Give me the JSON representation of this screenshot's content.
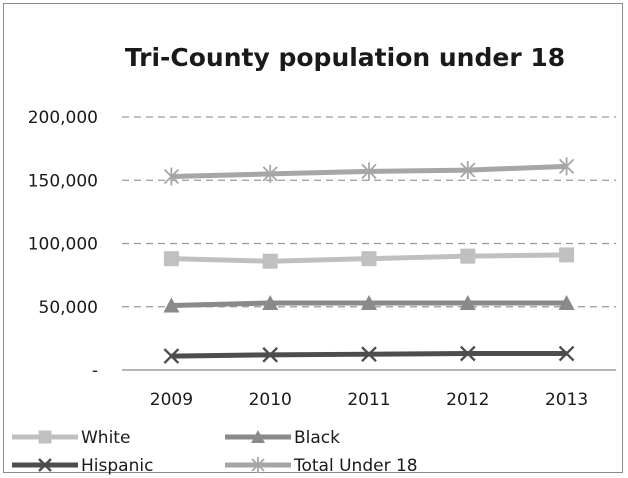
{
  "chart_data": {
    "type": "line",
    "title": "Tri-County population under 18",
    "xlabel": "",
    "ylabel": "",
    "categories": [
      "2009",
      "2010",
      "2011",
      "2012",
      "2013"
    ],
    "ylim": [
      0,
      200000
    ],
    "yticks": [
      0,
      50000,
      100000,
      150000,
      200000
    ],
    "ytick_labels": [
      "-",
      "50,000",
      "100,000",
      "150,000",
      "200,000"
    ],
    "grid": "horizontal dashed",
    "legend_position": "bottom",
    "series": [
      {
        "name": "White",
        "values": [
          88000,
          86000,
          88000,
          90000,
          91000
        ],
        "color": "#c0c0c0",
        "marker": "square"
      },
      {
        "name": "Black",
        "values": [
          51000,
          53000,
          53000,
          53000,
          53000
        ],
        "color": "#8a8a8a",
        "marker": "triangle"
      },
      {
        "name": "Hispanic",
        "values": [
          11000,
          12000,
          12500,
          13000,
          13000
        ],
        "color": "#4d4d4d",
        "marker": "x"
      },
      {
        "name": "Total Under 18",
        "values": [
          153000,
          155000,
          157000,
          158000,
          161000
        ],
        "color": "#a6a6a6",
        "marker": "star"
      }
    ]
  }
}
